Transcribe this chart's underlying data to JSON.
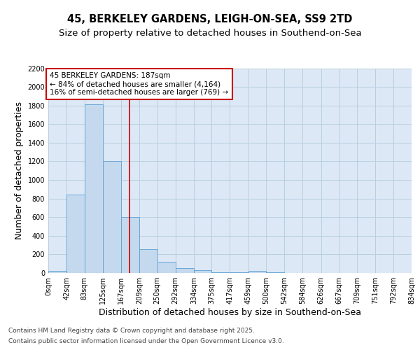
{
  "title_line1": "45, BERKELEY GARDENS, LEIGH-ON-SEA, SS9 2TD",
  "title_line2": "Size of property relative to detached houses in Southend-on-Sea",
  "xlabel": "Distribution of detached houses by size in Southend-on-Sea",
  "ylabel": "Number of detached properties",
  "bin_edges": [
    0,
    42,
    83,
    125,
    167,
    209,
    250,
    292,
    334,
    375,
    417,
    459,
    500,
    542,
    584,
    626,
    667,
    709,
    751,
    792,
    834
  ],
  "bar_heights": [
    25,
    840,
    1810,
    1200,
    600,
    255,
    120,
    50,
    30,
    5,
    5,
    20,
    5,
    0,
    0,
    0,
    0,
    0,
    0,
    0
  ],
  "bar_color": "#c5d9ee",
  "bar_edge_color": "#5a9fd4",
  "grid_color": "#b8cfe0",
  "background_color": "#dce8f5",
  "annotation_box_edge": "#cc0000",
  "vertical_line_x": 187,
  "annotation_text_line1": "45 BERKELEY GARDENS: 187sqm",
  "annotation_text_line2": "← 84% of detached houses are smaller (4,164)",
  "annotation_text_line3": "16% of semi-detached houses are larger (769) →",
  "ylim": [
    0,
    2200
  ],
  "yticks": [
    0,
    200,
    400,
    600,
    800,
    1000,
    1200,
    1400,
    1600,
    1800,
    2000,
    2200
  ],
  "bin_labels": [
    "0sqm",
    "42sqm",
    "83sqm",
    "125sqm",
    "167sqm",
    "209sqm",
    "250sqm",
    "292sqm",
    "334sqm",
    "375sqm",
    "417sqm",
    "459sqm",
    "500sqm",
    "542sqm",
    "584sqm",
    "626sqm",
    "667sqm",
    "709sqm",
    "751sqm",
    "792sqm",
    "834sqm"
  ],
  "footer_line1": "Contains HM Land Registry data © Crown copyright and database right 2025.",
  "footer_line2": "Contains public sector information licensed under the Open Government Licence v3.0.",
  "title_fontsize": 10.5,
  "subtitle_fontsize": 9.5,
  "axis_label_fontsize": 9,
  "tick_fontsize": 7,
  "annotation_fontsize": 7.5,
  "footer_fontsize": 6.5
}
